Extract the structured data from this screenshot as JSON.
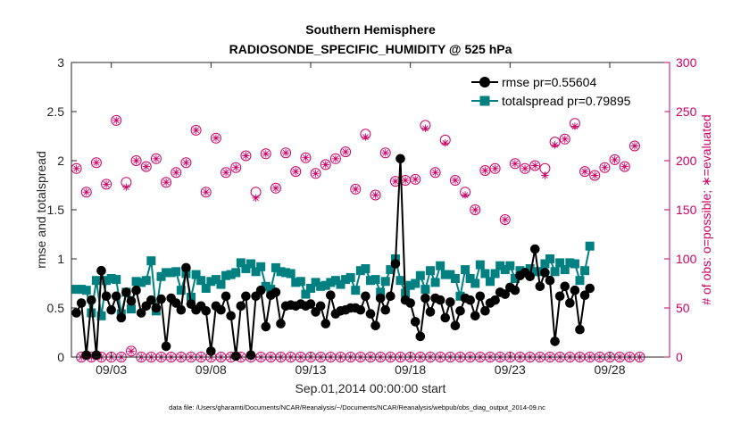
{
  "chart_data": {
    "type": "line",
    "title_line1": "Southern Hemisphere",
    "title_line2": "RADIOSONDE_SPECIFIC_HUMIDITY @ 525 hPa",
    "xlabel": "Sep.01,2014 00:00:00 start",
    "ylabel_left": "rmse and totalspread",
    "ylabel_right": "# of obs: o=possible; ∗=evaluated",
    "footnote": "data file: /Users/gharamti/Documents/NCAR/Reanalysis/~/Documents/NCAR/Reanalysis/webpub/obs_diag_output_2014-09.nc",
    "xlim": [
      1.0,
      31.0
    ],
    "ylim_left": [
      0,
      3
    ],
    "ylim_right": [
      0,
      300
    ],
    "x_ticks": [
      {
        "value": 3,
        "label": "09/03"
      },
      {
        "value": 8,
        "label": "09/08"
      },
      {
        "value": 13,
        "label": "09/13"
      },
      {
        "value": 18,
        "label": "09/18"
      },
      {
        "value": 23,
        "label": "09/23"
      },
      {
        "value": 28,
        "label": "09/28"
      }
    ],
    "y_ticks_left": [
      {
        "value": 0,
        "label": "0"
      },
      {
        "value": 0.5,
        "label": "0.5"
      },
      {
        "value": 1,
        "label": "1"
      },
      {
        "value": 1.5,
        "label": "1.5"
      },
      {
        "value": 2,
        "label": "2"
      },
      {
        "value": 2.5,
        "label": "2.5"
      },
      {
        "value": 3,
        "label": "3"
      }
    ],
    "y_ticks_right": [
      {
        "value": 0,
        "label": "0"
      },
      {
        "value": 50,
        "label": "50"
      },
      {
        "value": 100,
        "label": "100"
      },
      {
        "value": 150,
        "label": "150"
      },
      {
        "value": 200,
        "label": "200"
      },
      {
        "value": 250,
        "label": "250"
      },
      {
        "value": 300,
        "label": "300"
      }
    ],
    "colors": {
      "rmse": "#000000",
      "spread": "#008080",
      "obs": "#cc0066",
      "axis": "#262626"
    },
    "legend": {
      "location": "top-right",
      "entries": [
        {
          "name": "rmse pr=0.55604",
          "series": "rmse"
        },
        {
          "name": "totalspread pr=0.79895",
          "series": "spread"
        }
      ]
    },
    "x_start": 1.25,
    "x_step": 0.25,
    "series": [
      {
        "name": "rmse",
        "axis": "left",
        "values": [
          0.45,
          0.55,
          0.02,
          0.58,
          0.02,
          0.88,
          0.62,
          0.48,
          0.62,
          0.4,
          0.66,
          0.57,
          0.68,
          0.45,
          0.52,
          0.58,
          0.5,
          0.59,
          0.11,
          0.6,
          0.55,
          0.48,
          0.91,
          0.54,
          0.48,
          0.52,
          0.47,
          0.06,
          0.52,
          0.48,
          0.62,
          0.42,
          0.01,
          0.52,
          0.62,
          0.02,
          0.62,
          0.68,
          0.31,
          0.63,
          0.66,
          0.34,
          0.52,
          0.53,
          0.52,
          0.54,
          0.52,
          0.54,
          0.46,
          0.52,
          0.34,
          0.63,
          0.44,
          0.47,
          0.48,
          0.5,
          0.5,
          0.48,
          0.62,
          0.44,
          0.32,
          0.6,
          0.48,
          0.62,
          0.95,
          2.02,
          0.58,
          0.55,
          0.36,
          0.21,
          0.6,
          0.46,
          0.6,
          0.58,
          0.4,
          0.56,
          0.32,
          0.47,
          0.6,
          0.58,
          0.42,
          0.62,
          0.47,
          0.55,
          0.58,
          0.66,
          0.64,
          0.71,
          0.68,
          0.83,
          0.86,
          0.82,
          1.1,
          0.72,
          0.86,
          0.78,
          0.16,
          0.62,
          0.72,
          0.55,
          0.68,
          0.28,
          0.63,
          0.7
        ]
      },
      {
        "name": "totalspread",
        "axis": "left",
        "values": [
          0.69,
          0.69,
          0.68,
          0.45,
          0.78,
          0.42,
          0.78,
          0.8,
          0.79,
          0.44,
          0.66,
          0.49,
          0.77,
          0.76,
          0.78,
          0.98,
          0.47,
          0.82,
          0.86,
          0.86,
          0.87,
          0.68,
          0.85,
          0.61,
          0.84,
          0.78,
          0.7,
          0.77,
          0.79,
          0.74,
          0.83,
          0.84,
          0.86,
          0.96,
          0.9,
          0.95,
          0.87,
          0.92,
          0.72,
          0.69,
          0.91,
          0.87,
          0.86,
          0.85,
          0.76,
          0.77,
          0.64,
          0.7,
          0.76,
          0.72,
          0.73,
          0.76,
          0.78,
          0.74,
          0.79,
          0.81,
          0.68,
          0.88,
          0.9,
          0.78,
          0.79,
          0.66,
          0.77,
          0.89,
          1.0,
          0.78,
          0.65,
          0.73,
          0.75,
          0.83,
          0.69,
          0.88,
          0.76,
          0.93,
          0.84,
          0.84,
          0.8,
          0.62,
          0.89,
          0.8,
          0.75,
          0.94,
          0.85,
          0.77,
          0.85,
          0.93,
          0.89,
          0.93,
          0.8,
          0.88,
          0.86,
          0.9,
          0.87,
          0.87,
          0.95,
          1.0,
          0.87,
          0.96,
          0.89,
          0.96,
          0.95,
          0.78,
          0.88,
          1.13
        ]
      },
      {
        "name": "possible",
        "axis": "right",
        "values": [
          192,
          0,
          168,
          0,
          198,
          0,
          176,
          0,
          241,
          0,
          178,
          6,
          200,
          0,
          194,
          0,
          202,
          0,
          178,
          0,
          188,
          0,
          198,
          0,
          231,
          0,
          168,
          0,
          223,
          0,
          188,
          0,
          193,
          0,
          205,
          0,
          168,
          0,
          207,
          0,
          172,
          0,
          208,
          0,
          189,
          0,
          203,
          0,
          187,
          0,
          196,
          0,
          202,
          0,
          209,
          0,
          171,
          0,
          227,
          0,
          165,
          0,
          208,
          0,
          179,
          0,
          180,
          0,
          181,
          0,
          236,
          0,
          188,
          0,
          221,
          0,
          180,
          0,
          168,
          0,
          150,
          0,
          190,
          0,
          192,
          0,
          140,
          0,
          197,
          0,
          192,
          0,
          195,
          0,
          192,
          0,
          219,
          0,
          222,
          0,
          238,
          0,
          189,
          0,
          185,
          0,
          193,
          0,
          201,
          0,
          194,
          0,
          215,
          0
        ]
      },
      {
        "name": "evaluated",
        "axis": "right",
        "values": [
          192,
          0,
          168,
          0,
          198,
          0,
          176,
          0,
          241,
          0,
          173,
          6,
          200,
          0,
          194,
          0,
          202,
          0,
          178,
          0,
          188,
          0,
          198,
          0,
          231,
          0,
          168,
          0,
          223,
          0,
          188,
          0,
          193,
          0,
          205,
          0,
          162,
          0,
          207,
          0,
          172,
          0,
          208,
          0,
          189,
          0,
          203,
          0,
          187,
          0,
          196,
          0,
          202,
          0,
          209,
          0,
          171,
          0,
          224,
          0,
          165,
          0,
          208,
          0,
          179,
          0,
          180,
          0,
          181,
          0,
          233,
          0,
          188,
          0,
          218,
          0,
          180,
          0,
          165,
          0,
          150,
          0,
          190,
          0,
          192,
          0,
          140,
          0,
          197,
          0,
          192,
          0,
          195,
          0,
          185,
          0,
          216,
          0,
          222,
          0,
          235,
          0,
          189,
          0,
          185,
          0,
          193,
          0,
          201,
          0,
          194,
          0,
          215,
          0
        ]
      }
    ]
  }
}
